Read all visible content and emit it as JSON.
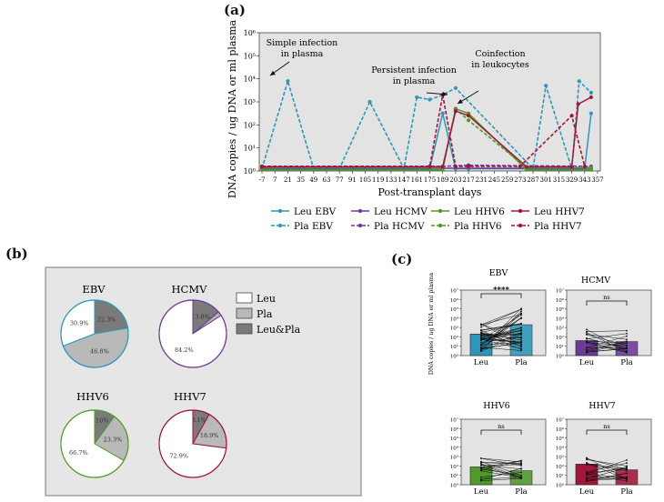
{
  "colors": {
    "EBV": "#2e96b8",
    "HCMV": "#6d3a96",
    "HHV6": "#4f9a2a",
    "HHV7": "#a3153a",
    "plot_bg": "#e3e3e3",
    "pie_leu": "#ffffff",
    "pie_pla": "#b9b9b9",
    "pie_both": "#7a7a7a"
  },
  "panels": {
    "a": "(a)",
    "b": "(b)",
    "c": "(c)"
  },
  "chart_data": [
    {
      "id": "a",
      "type": "line",
      "title": "",
      "xlabel": "Post-transplant days",
      "ylabel": "DNA copies / ug DNA or ml plasma",
      "xlim": [
        -10,
        360
      ],
      "ylim_log10": [
        0,
        6
      ],
      "x_ticks": [
        -7,
        7,
        21,
        35,
        49,
        63,
        77,
        91,
        105,
        119,
        133,
        147,
        161,
        175,
        189,
        203,
        217,
        231,
        245,
        259,
        273,
        287,
        301,
        315,
        329,
        343,
        357
      ],
      "y_ticks": [
        "10⁰",
        "10¹",
        "10²",
        "10³",
        "10⁴",
        "10⁵",
        "10⁶"
      ],
      "annotations": [
        {
          "id": "simple",
          "lines": [
            "Simple infection",
            "in plasma"
          ],
          "x": 21,
          "y": 3.9
        },
        {
          "id": "persistent",
          "lines": [
            "Persistent infection",
            "in plasma"
          ],
          "x": 203,
          "y": 3.6
        },
        {
          "id": "coinfection",
          "lines": [
            "Coinfection",
            "in leukocytes"
          ],
          "x": 205,
          "y": 2.9
        }
      ],
      "series": [
        {
          "name": "Leu EBV",
          "virus": "EBV",
          "dash": false,
          "x": [
            -7,
            7,
            21,
            35,
            49,
            63,
            77,
            91,
            105,
            119,
            133,
            147,
            161,
            175,
            189,
            203,
            217,
            287,
            329,
            343,
            350
          ],
          "y": [
            0.1,
            0.1,
            0.1,
            0.1,
            0.1,
            0.1,
            0.1,
            0.1,
            0.1,
            0.1,
            0.1,
            0.1,
            0.1,
            0.1,
            2.5,
            0.1,
            0.1,
            0.1,
            0.1,
            0.1,
            2.5
          ]
        },
        {
          "name": "Pla EBV",
          "virus": "EBV",
          "dash": true,
          "x": [
            -7,
            21,
            49,
            77,
            110,
            147,
            161,
            175,
            189,
            203,
            287,
            301,
            329,
            337,
            350
          ],
          "y": [
            0.1,
            3.9,
            0.1,
            0.1,
            3.0,
            0.1,
            3.2,
            3.1,
            3.3,
            3.6,
            0.1,
            3.7,
            0.1,
            3.9,
            3.4
          ]
        },
        {
          "name": "Leu HCMV",
          "virus": "HCMV",
          "dash": false,
          "x": [
            -7,
            350
          ],
          "y": [
            0.12,
            0.12
          ]
        },
        {
          "name": "Pla HCMV",
          "virus": "HCMV",
          "dash": true,
          "x": [
            -7,
            189,
            217,
            350
          ],
          "y": [
            0.2,
            0.2,
            0.25,
            0.2
          ]
        },
        {
          "name": "Leu HHV6",
          "virus": "HHV6",
          "dash": false,
          "x": [
            -7,
            189,
            203,
            217,
            280,
            350
          ],
          "y": [
            0.05,
            0.05,
            2.7,
            2.5,
            0.05,
            0.05
          ]
        },
        {
          "name": "Pla HHV6",
          "virus": "HHV6",
          "dash": true,
          "x": [
            -7,
            189,
            203,
            217,
            280,
            350
          ],
          "y": [
            0.15,
            0.15,
            2.7,
            2.2,
            0.15,
            0.15
          ]
        },
        {
          "name": "Leu HHV7",
          "virus": "HHV7",
          "dash": false,
          "x": [
            -7,
            189,
            203,
            217,
            280,
            329,
            336,
            350
          ],
          "y": [
            0.18,
            0.18,
            2.6,
            2.4,
            0.18,
            0.18,
            2.9,
            3.2
          ]
        },
        {
          "name": "Pla HHV7",
          "virus": "HHV7",
          "dash": true,
          "x": [
            -7,
            175,
            189,
            203,
            217,
            273,
            329,
            343
          ],
          "y": [
            0.2,
            0.2,
            3.3,
            0.2,
            0.2,
            0.2,
            2.4,
            0.2
          ]
        }
      ],
      "legend": [
        "Leu EBV",
        "Leu HCMV",
        "Leu HHV6",
        "Leu HHV7",
        "Pla EBV",
        "Pla HCMV",
        "Pla HHV6",
        "Pla HHV7"
      ]
    },
    {
      "id": "b",
      "type": "pie",
      "legend": [
        "Leu",
        "Pla",
        "Leu&Pla"
      ],
      "pies": [
        {
          "title": "EBV",
          "virus": "EBV",
          "slices": [
            {
              "label": "30.9%",
              "value": 30.9,
              "cat": "Leu"
            },
            {
              "label": "46.8%",
              "value": 46.8,
              "cat": "Pla"
            },
            {
              "label": "22.3%",
              "value": 22.3,
              "cat": "Leu&Pla"
            }
          ]
        },
        {
          "title": "HCMV",
          "virus": "HCMV",
          "slices": [
            {
              "label": "84.2%",
              "value": 84.2,
              "cat": "Leu"
            },
            {
              "label": "",
              "value": 2.0,
              "cat": "Pla"
            },
            {
              "label": "13.8%",
              "value": 13.8,
              "cat": "Leu&Pla"
            }
          ]
        },
        {
          "title": "HHV6",
          "virus": "HHV6",
          "slices": [
            {
              "label": "66.7%",
              "value": 66.7,
              "cat": "Leu"
            },
            {
              "label": "23.3%",
              "value": 23.3,
              "cat": "Pla"
            },
            {
              "label": "10%",
              "value": 10.0,
              "cat": "Leu&Pla"
            }
          ]
        },
        {
          "title": "HHV7",
          "virus": "HHV7",
          "slices": [
            {
              "label": "72.9%",
              "value": 72.9,
              "cat": "Leu"
            },
            {
              "label": "18.9%",
              "value": 18.9,
              "cat": "Pla"
            },
            {
              "label": "8.1%",
              "value": 8.1,
              "cat": "Leu&Pla"
            }
          ]
        }
      ]
    },
    {
      "id": "c",
      "type": "bar",
      "ylabel": "DNA copies / ug DNA or ml plasma",
      "ylim_log10": [
        0,
        7
      ],
      "y_ticks": [
        "10⁰",
        "10¹",
        "10²",
        "10³",
        "10⁴",
        "10⁵",
        "10⁶",
        "10⁷"
      ],
      "categories": [
        "Leu",
        "Pla"
      ],
      "subplots": [
        {
          "title": "EBV",
          "virus": "EBV",
          "values_log10": [
            2.3,
            3.3
          ],
          "significance": "****"
        },
        {
          "title": "HCMV",
          "virus": "HCMV",
          "values_log10": [
            1.6,
            1.5
          ],
          "significance": "ns"
        },
        {
          "title": "HHV6",
          "virus": "HHV6",
          "values_log10": [
            1.9,
            1.5
          ],
          "significance": "ns"
        },
        {
          "title": "HHV7",
          "virus": "HHV7",
          "values_log10": [
            2.2,
            1.6
          ],
          "significance": "ns"
        }
      ]
    }
  ]
}
